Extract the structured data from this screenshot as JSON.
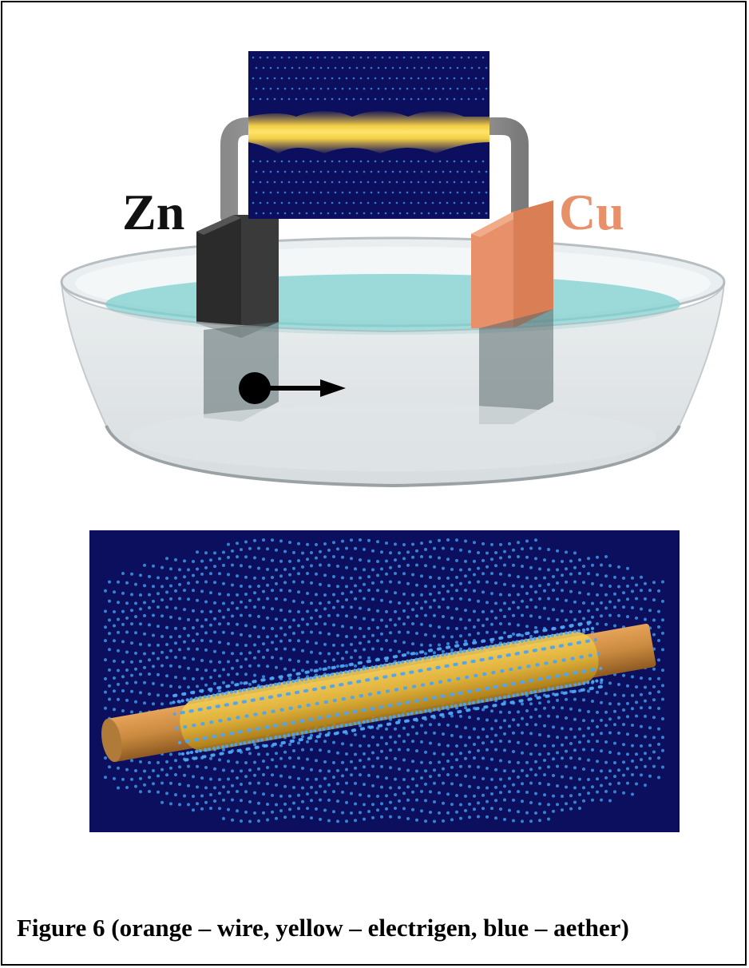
{
  "figure": {
    "electrode_left_label": "Zn",
    "electrode_right_label": "Cu",
    "caption": "Figure 6 (orange – wire, yellow – electrigen, blue – aether)"
  },
  "colors": {
    "zinc": "#2b2b2b",
    "copper": "#e8906a",
    "wire": "#c98a3f",
    "electrigen": "#e0b43a",
    "aether_dots": "#3a8fe0",
    "background_navy": "#0b0f5e",
    "electrolyte": "#7fd0d0"
  }
}
